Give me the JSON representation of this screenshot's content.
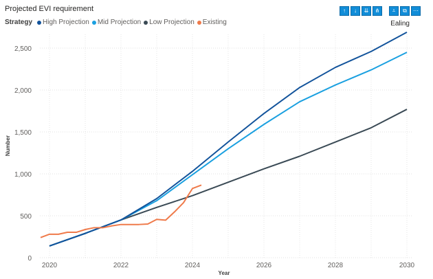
{
  "title": "Projected EVI requirement",
  "legend_title": "Strategy",
  "slicer_value": "Ealing",
  "toolbar": [
    {
      "icon": "arrow-up-icon",
      "glyph": "↑"
    },
    {
      "icon": "arrow-down-icon",
      "glyph": "↓"
    },
    {
      "icon": "double-arrow-down-icon",
      "glyph": "⇊"
    },
    {
      "icon": "expand-hierarchy-icon",
      "glyph": "⋔"
    },
    {
      "icon": "filter-icon",
      "glyph": "⩡"
    },
    {
      "icon": "focus-mode-icon",
      "glyph": "⧉"
    },
    {
      "icon": "more-options-icon",
      "glyph": "⋯"
    }
  ],
  "chart_data": {
    "type": "line",
    "xlabel": "Year",
    "ylabel": "Number",
    "xlim": [
      2019.75,
      2030.2
    ],
    "ylim": [
      0,
      2700
    ],
    "x_ticks": [
      "2020",
      "2022",
      "2024",
      "2026",
      "2028",
      "2030"
    ],
    "y_ticks": [
      "0",
      "500",
      "1,000",
      "1,500",
      "2,000",
      "2,500"
    ],
    "grid": true,
    "legend_position": "top-left",
    "series": [
      {
        "name": "High Projection",
        "color": "#12539b",
        "x": [
          2020,
          2021,
          2022,
          2023,
          2024,
          2025,
          2026,
          2027,
          2028,
          2029,
          2030
        ],
        "values": [
          140,
          290,
          450,
          705,
          1030,
          1380,
          1720,
          2030,
          2270,
          2460,
          2690
        ]
      },
      {
        "name": "Mid Projection",
        "color": "#1aa0e0",
        "x": [
          2020,
          2021,
          2022,
          2023,
          2024,
          2025,
          2026,
          2027,
          2028,
          2029,
          2030
        ],
        "values": [
          140,
          290,
          450,
          680,
          990,
          1300,
          1590,
          1860,
          2060,
          2240,
          2450
        ]
      },
      {
        "name": "Low Projection",
        "color": "#3a4a55",
        "x": [
          2020,
          2021,
          2022,
          2023,
          2024,
          2025,
          2026,
          2027,
          2028,
          2029,
          2030
        ],
        "values": [
          140,
          290,
          450,
          600,
          740,
          900,
          1060,
          1210,
          1380,
          1550,
          1770
        ]
      },
      {
        "name": "Existing",
        "color": "#ef7a4a",
        "x": [
          2019.75,
          2020,
          2020.25,
          2020.5,
          2020.75,
          2021,
          2021.25,
          2021.5,
          2021.75,
          2022,
          2022.25,
          2022.5,
          2022.75,
          2023,
          2023.25,
          2023.5,
          2023.75,
          2024,
          2024.25
        ],
        "values": [
          240,
          280,
          280,
          303,
          303,
          336,
          358,
          358,
          380,
          396,
          396,
          396,
          402,
          457,
          448,
          547,
          656,
          825,
          866
        ]
      }
    ]
  }
}
